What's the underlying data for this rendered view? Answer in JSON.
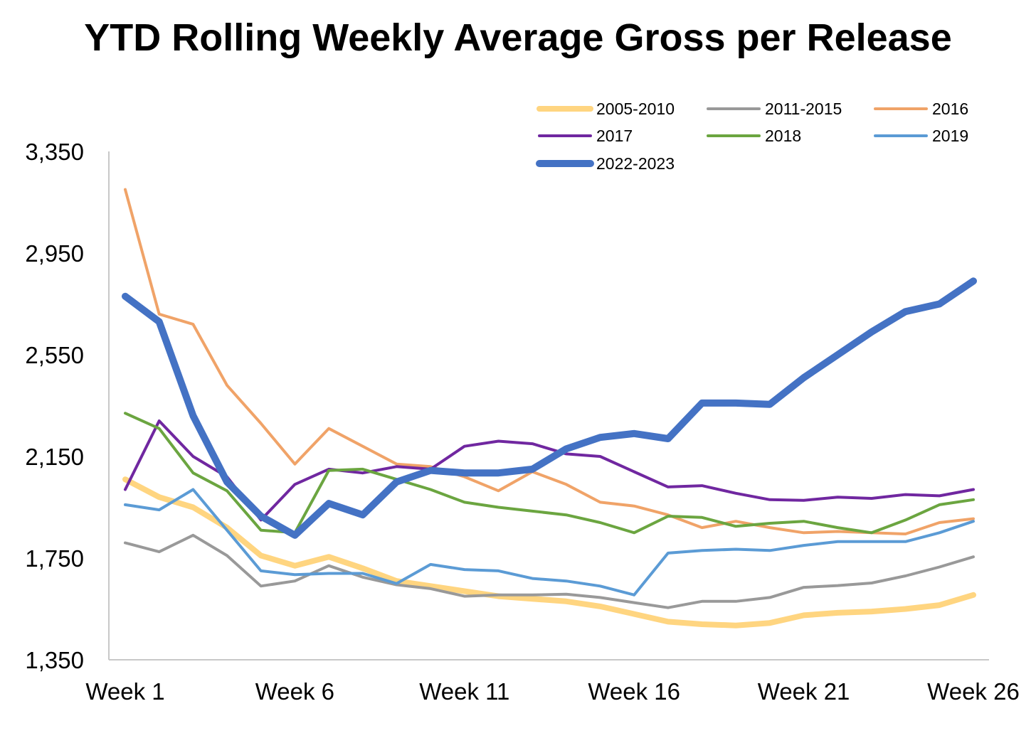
{
  "chart_data": {
    "type": "line",
    "title": "YTD Rolling Weekly Average Gross per Release",
    "xlabel": "",
    "ylabel": "",
    "ylim": [
      1350,
      3350
    ],
    "yticks": [
      "1,350",
      "1,750",
      "2,150",
      "2,550",
      "2,950",
      "3,350"
    ],
    "ytick_values": [
      1350,
      1750,
      2150,
      2550,
      2950,
      3350
    ],
    "xticks": [
      "Week 1",
      "Week 6",
      "Week 11",
      "Week 16",
      "Week 21",
      "Week 26"
    ],
    "xtick_weeks": [
      1,
      6,
      11,
      16,
      21,
      26
    ],
    "x": [
      1,
      2,
      3,
      4,
      5,
      6,
      7,
      8,
      9,
      10,
      11,
      12,
      13,
      14,
      15,
      16,
      17,
      18,
      19,
      20,
      21,
      22,
      23,
      24,
      25,
      26
    ],
    "grid": false,
    "legend_position": "top-right",
    "series": [
      {
        "name": "2005-2010",
        "color": "#FFD580",
        "width": 8,
        "values": [
          2060,
          1990,
          1950,
          1870,
          1760,
          1720,
          1755,
          1710,
          1660,
          1640,
          1620,
          1600,
          1590,
          1580,
          1560,
          1530,
          1500,
          1490,
          1485,
          1495,
          1525,
          1535,
          1540,
          1550,
          1565,
          1605
        ]
      },
      {
        "name": "2011-2015",
        "color": "#999999",
        "width": 4,
        "values": [
          1810,
          1775,
          1840,
          1760,
          1640,
          1660,
          1720,
          1675,
          1645,
          1630,
          1600,
          1605,
          1605,
          1608,
          1595,
          1575,
          1555,
          1580,
          1580,
          1595,
          1635,
          1642,
          1652,
          1680,
          1715,
          1755
        ]
      },
      {
        "name": "2016",
        "color": "#F0A368",
        "width": 4,
        "values": [
          3200,
          2710,
          2670,
          2430,
          2280,
          2120,
          2260,
          2190,
          2120,
          2110,
          2070,
          2015,
          2090,
          2040,
          1970,
          1955,
          1920,
          1870,
          1895,
          1870,
          1850,
          1855,
          1850,
          1845,
          1890,
          1905
        ]
      },
      {
        "name": "2017",
        "color": "#7027A0",
        "width": 4,
        "values": [
          2020,
          2290,
          2150,
          2070,
          1900,
          2040,
          2100,
          2085,
          2110,
          2100,
          2190,
          2210,
          2200,
          2160,
          2150,
          2090,
          2030,
          2035,
          2005,
          1980,
          1977,
          1990,
          1985,
          2000,
          1995,
          2020
        ]
      },
      {
        "name": "2018",
        "color": "#6BA540",
        "width": 4,
        "values": [
          2320,
          2260,
          2085,
          2015,
          1860,
          1850,
          2095,
          2100,
          2060,
          2020,
          1970,
          1950,
          1935,
          1920,
          1890,
          1850,
          1915,
          1910,
          1875,
          1887,
          1895,
          1870,
          1850,
          1900,
          1960,
          1980
        ]
      },
      {
        "name": "2019",
        "color": "#5B9BD5",
        "width": 4,
        "values": [
          1960,
          1940,
          2020,
          1860,
          1700,
          1685,
          1690,
          1690,
          1650,
          1725,
          1705,
          1700,
          1670,
          1660,
          1640,
          1605,
          1770,
          1780,
          1785,
          1780,
          1800,
          1815,
          1815,
          1815,
          1850,
          1895
        ]
      },
      {
        "name": "2022-2023",
        "color": "#4472C4",
        "width": 10,
        "values": [
          2780,
          2680,
          2310,
          2050,
          1915,
          1840,
          1965,
          1920,
          2050,
          2095,
          2085,
          2085,
          2100,
          2180,
          2225,
          2240,
          2220,
          2360,
          2360,
          2355,
          2460,
          2550,
          2640,
          2720,
          2750,
          2840
        ]
      }
    ]
  }
}
